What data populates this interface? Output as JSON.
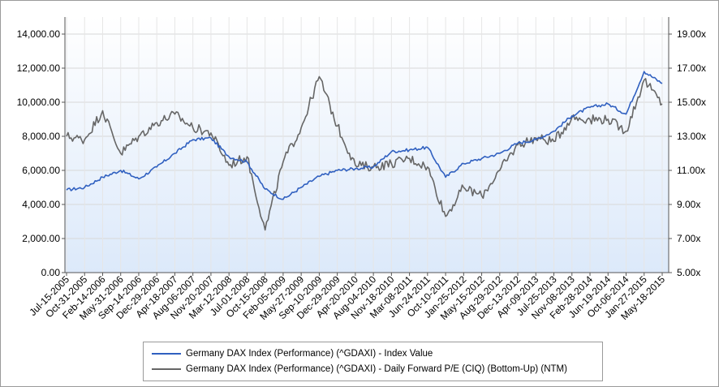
{
  "chart_data": {
    "type": "line",
    "title": "",
    "xlabel": "",
    "ylabel_left": "",
    "ylabel_right": "",
    "x_tick_labels": [
      "Jul-15-2005",
      "Oct-31-2005",
      "Feb-14-2006",
      "May-31-2006",
      "Sep-14-2006",
      "Dec-29-2006",
      "Apr-18-2007",
      "Aug-06-2007",
      "Nov-20-2007",
      "Mar-12-2008",
      "Jul-01-2008",
      "Oct-15-2008",
      "Feb-05-2009",
      "May-27-2009",
      "Sep-10-2009",
      "Dec-29-2009",
      "Apr-20-2010",
      "Aug-04-2010",
      "Nov-18-2010",
      "Mar-08-2011",
      "Jun-24-2011",
      "Oct-10-2011",
      "Jan-25-2012",
      "May-15-2012",
      "Aug-29-2012",
      "Dec-13-2012",
      "Apr-09-2013",
      "Jul-25-2013",
      "Nov-08-2013",
      "Feb-28-2014",
      "Jun-19-2014",
      "Oct-06-2014",
      "Jan-27-2015",
      "May-18-2015"
    ],
    "y_left_ticks": [
      "0.00",
      "2,000.00",
      "4,000.00",
      "6,000.00",
      "8,000.00",
      "10,000.00",
      "12,000.00",
      "14,000.00"
    ],
    "y_left_range": [
      0,
      15000
    ],
    "y_right_ticks": [
      "5.00x",
      "7.00x",
      "9.00x",
      "11.00x",
      "13.00x",
      "15.00x",
      "17.00x",
      "19.00x"
    ],
    "y_right_range": [
      5,
      20
    ],
    "series": [
      {
        "name": "Germany DAX Index (Performance) (^GDAXI) - Index Value",
        "color": "#3060c0",
        "axis": "left",
        "x_index": [
          0,
          1,
          2,
          3,
          4,
          5,
          6,
          7,
          8,
          9,
          10,
          11,
          12,
          13,
          14,
          15,
          16,
          17,
          18,
          19,
          20,
          21,
          22,
          23,
          24,
          25,
          26,
          27,
          28,
          29,
          30,
          31,
          32,
          33
        ],
        "values": [
          4850,
          5000,
          5600,
          6000,
          5500,
          6200,
          7000,
          7800,
          7900,
          6800,
          6500,
          4900,
          4300,
          5000,
          5650,
          6000,
          6100,
          6200,
          7100,
          7200,
          7350,
          5600,
          6400,
          6700,
          7000,
          7600,
          7800,
          8300,
          9200,
          9700,
          9900,
          9300,
          11800,
          11100
        ]
      },
      {
        "name": "Germany DAX Index (Performance) (^GDAXI) - Daily Forward P/E (CIQ) (Bottom-Up) (NTM)",
        "color": "#666666",
        "axis": "right",
        "x_index": [
          0,
          1,
          2,
          3,
          4,
          5,
          6,
          7,
          8,
          9,
          10,
          11,
          12,
          13,
          14,
          15,
          16,
          17,
          18,
          19,
          20,
          21,
          22,
          23,
          24,
          25,
          26,
          27,
          28,
          29,
          30,
          31,
          32,
          33
        ],
        "values": [
          13.0,
          12.8,
          14.5,
          12.0,
          13.0,
          13.8,
          14.3,
          13.5,
          13.2,
          11.3,
          11.8,
          7.5,
          11.5,
          13.5,
          16.5,
          13.6,
          11.3,
          11.2,
          11.4,
          11.7,
          11.2,
          8.3,
          10.0,
          9.5,
          11.0,
          12.5,
          12.9,
          12.7,
          14.1,
          14.0,
          14.0,
          13.3,
          16.3,
          14.9
        ]
      }
    ],
    "grid": true,
    "legend_position": "bottom"
  },
  "legend": {
    "items": [
      {
        "label": "Germany DAX Index (Performance) (^GDAXI) - Index Value",
        "color": "#3060c0"
      },
      {
        "label": "Germany DAX Index (Performance) (^GDAXI) - Daily Forward P/E (CIQ) (Bottom-Up) (NTM)",
        "color": "#666666"
      }
    ]
  }
}
